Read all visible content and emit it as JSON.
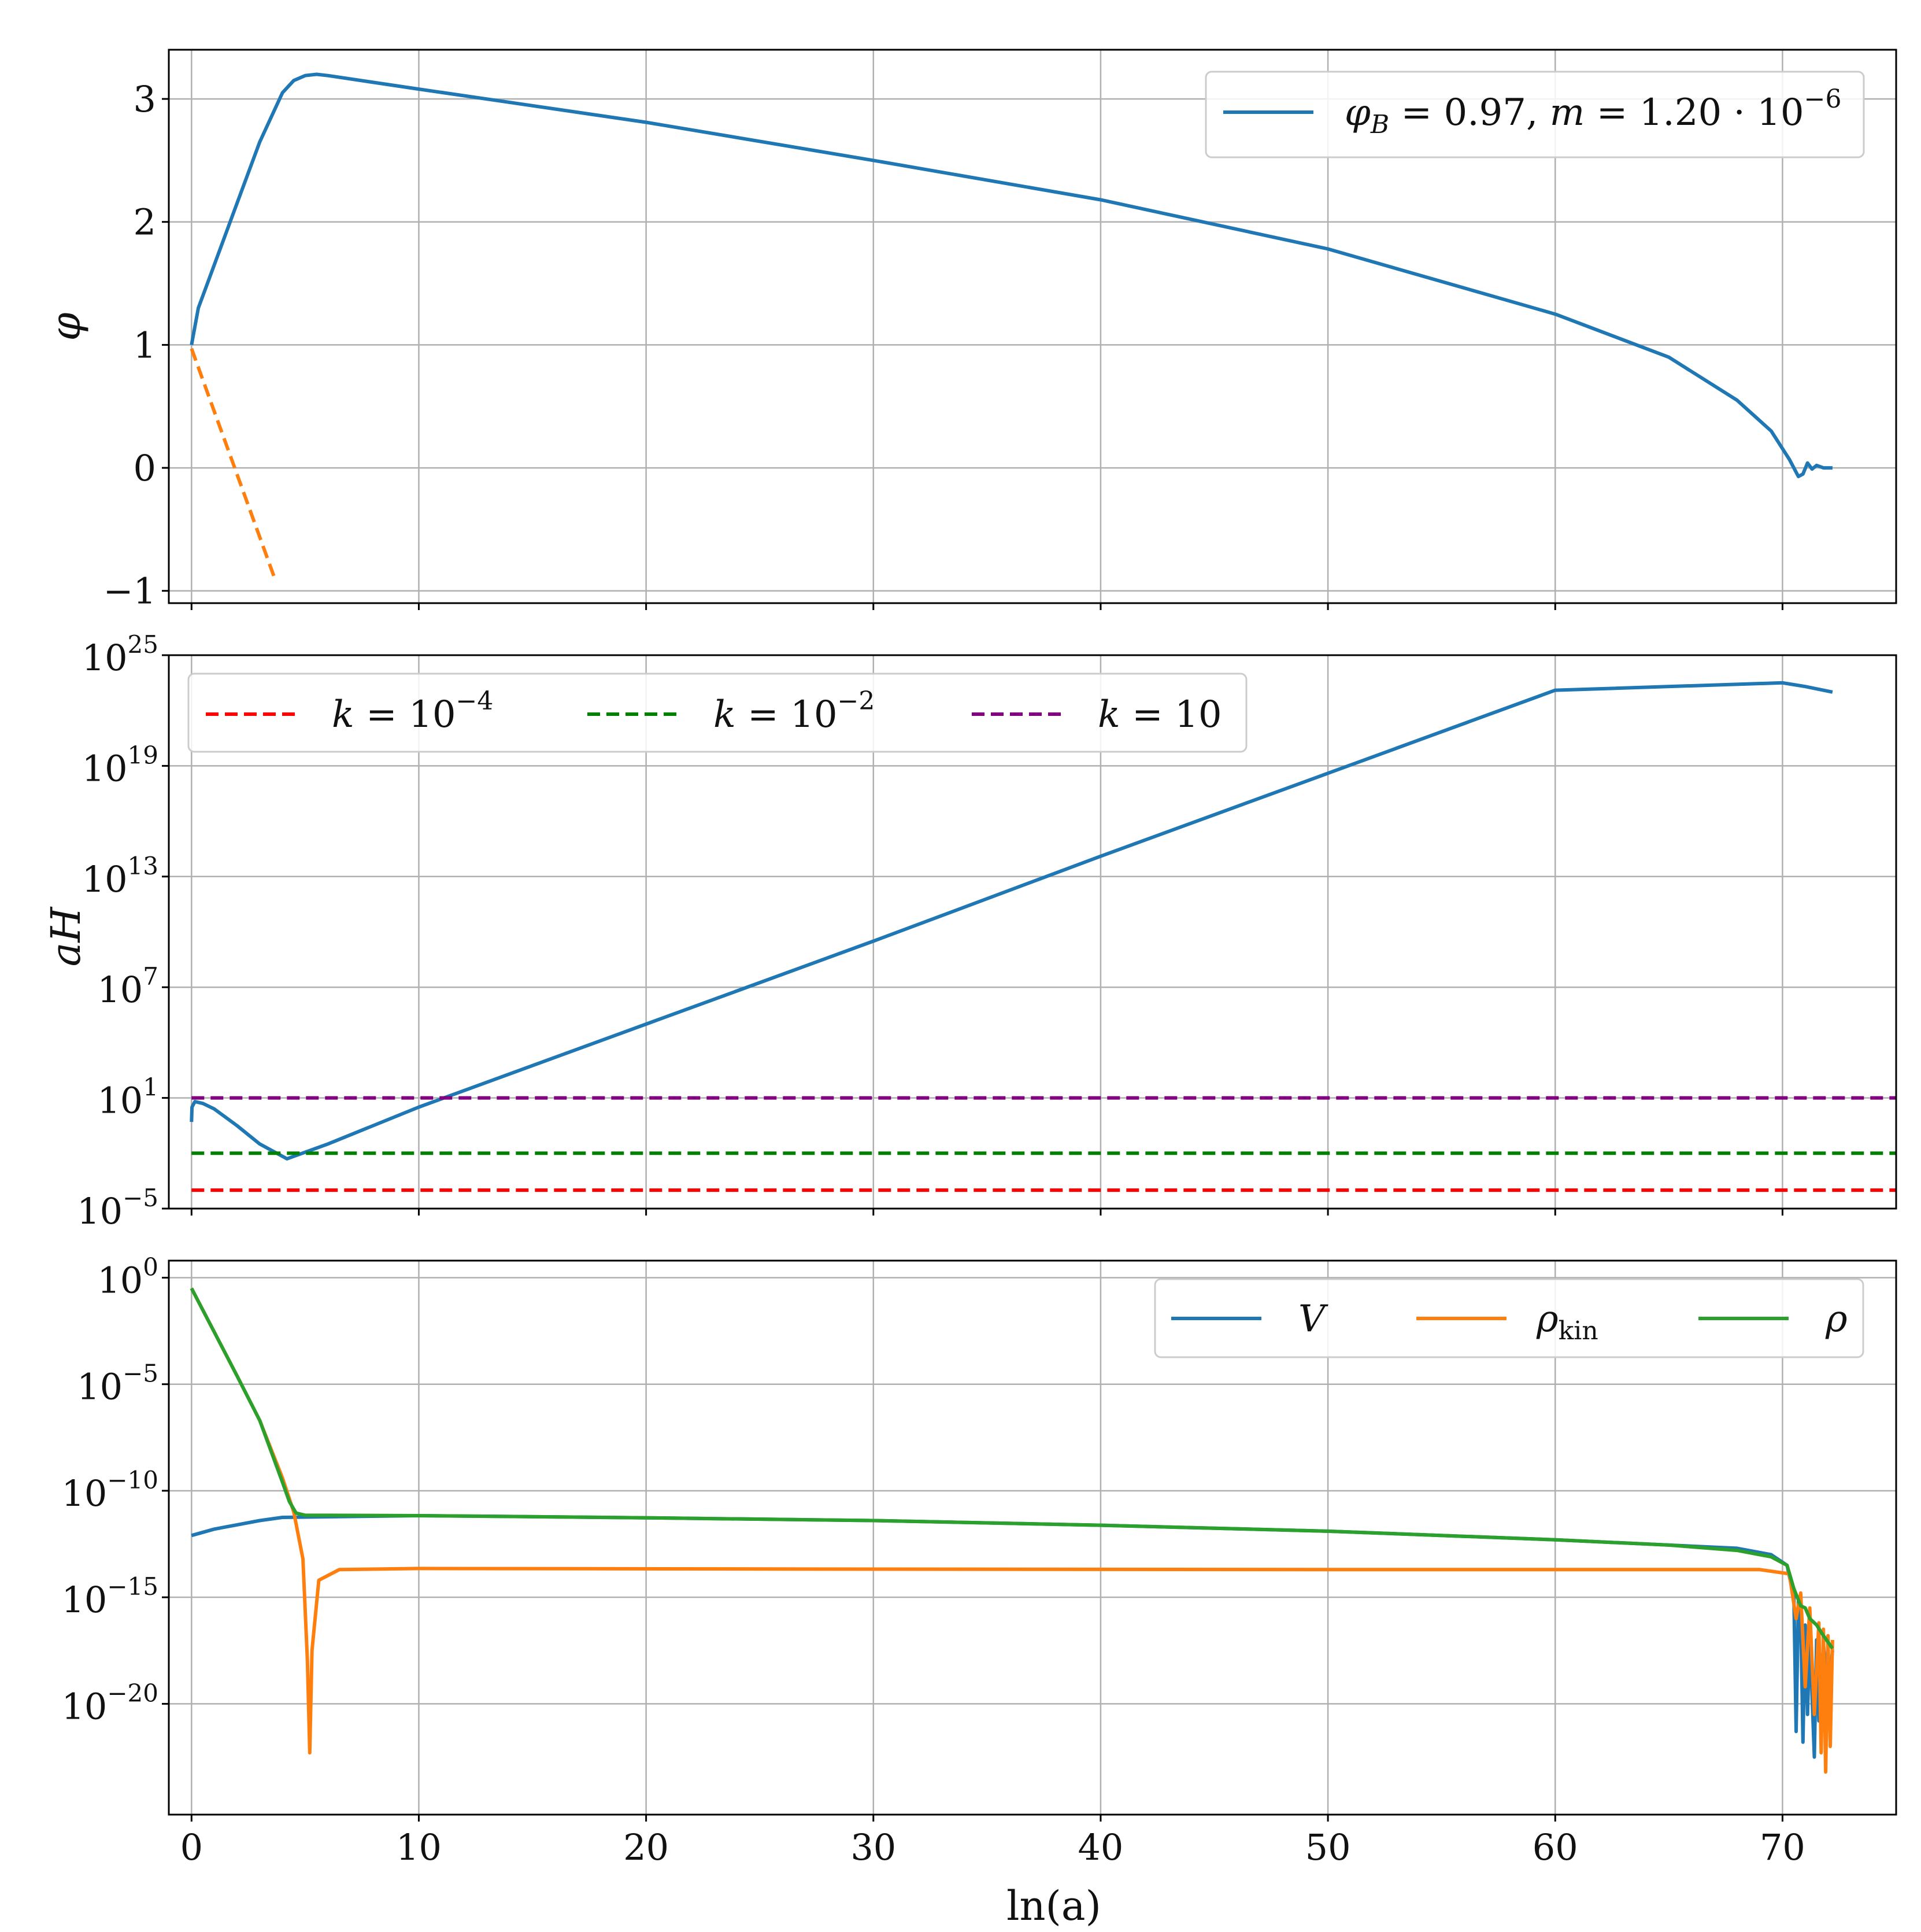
{
  "chart_data": [
    {
      "type": "line",
      "ylabel": "φ",
      "xlim": [
        -1,
        75
      ],
      "ylim": [
        -1.1,
        3.4
      ],
      "yticks": [
        -1,
        0,
        1,
        2,
        3
      ],
      "ytick_labels": [
        "−1",
        "0",
        "1",
        "2",
        "3"
      ],
      "grid": true,
      "legend": {
        "placement": "top-right",
        "entries": [
          {
            "series": 0,
            "text": "φB = 0.97, m = 1.20 · 10−6",
            "parts": {
              "phi": "φ",
              "sub": "B",
              "body": " = 0.97, ",
              "m": "m",
              "eq": " = 1.20 · 10",
              "exp": "−6"
            }
          }
        ]
      },
      "series": [
        {
          "name": "φB = 0.97, m = 1.20 · 10−6",
          "color": "#1f77b4",
          "style": "solid",
          "x": [
            0,
            0.3,
            1,
            2,
            3,
            4,
            4.5,
            5,
            5.5,
            6,
            10,
            20,
            30,
            40,
            50,
            60,
            65,
            68,
            69.5,
            70.3,
            70.7,
            70.9,
            71.1,
            71.3,
            71.5,
            71.8,
            72.2
          ],
          "y": [
            1.0,
            1.3,
            1.65,
            2.15,
            2.65,
            3.05,
            3.15,
            3.19,
            3.2,
            3.19,
            3.08,
            2.81,
            2.5,
            2.18,
            1.78,
            1.25,
            0.9,
            0.55,
            0.3,
            0.07,
            -0.07,
            -0.05,
            0.04,
            -0.01,
            0.02,
            0.0,
            0.0
          ]
        },
        {
          "name": "",
          "color": "#ff7f0e",
          "style": "dashed",
          "x": [
            0,
            3.7
          ],
          "y": [
            0.97,
            -0.92
          ]
        }
      ]
    },
    {
      "type": "line",
      "ylabel": "aH",
      "yscale": "log",
      "xlim": [
        -1,
        75
      ],
      "ylim_log10": [
        -5,
        25
      ],
      "yticks_log10": [
        -5,
        1,
        7,
        13,
        19,
        25
      ],
      "ytick_labels": [
        {
          "base": "10",
          "exp": "−5"
        },
        {
          "base": "10",
          "exp": "1"
        },
        {
          "base": "10",
          "exp": "7"
        },
        {
          "base": "10",
          "exp": "13"
        },
        {
          "base": "10",
          "exp": "19"
        },
        {
          "base": "10",
          "exp": "25"
        }
      ],
      "grid": true,
      "legend": {
        "placement": "top-left",
        "entries": [
          {
            "series": 1,
            "text": "k = 10−4",
            "parts": {
              "k": "k",
              "eq": " = 10",
              "exp": "−4"
            }
          },
          {
            "series": 2,
            "text": "k = 10−2",
            "parts": {
              "k": "k",
              "eq": " = 10",
              "exp": "−2"
            }
          },
          {
            "series": 3,
            "text": "k = 10",
            "parts": {
              "k": "k",
              "eq": " = 10",
              "exp": ""
            }
          }
        ]
      },
      "series": [
        {
          "name": "",
          "color": "#1f77b4",
          "style": "solid",
          "log10_y": true,
          "x": [
            0,
            0.02,
            0.15,
            0.5,
            1,
            2,
            3,
            4.2,
            6,
            10,
            20,
            30,
            40,
            50,
            60,
            70,
            70.5,
            71,
            72.2
          ],
          "y": [
            -0.3,
            0.5,
            0.8,
            0.7,
            0.4,
            -0.5,
            -1.5,
            -2.3,
            -1.5,
            0.5,
            5.0,
            9.5,
            14.1,
            18.6,
            23.1,
            23.5,
            23.4,
            23.3,
            23.0
          ]
        },
        {
          "name": "k = 10−4",
          "color": "#ff0000",
          "style": "dashed",
          "log10_y": true,
          "x": [
            0,
            75
          ],
          "y": [
            -4,
            -4
          ]
        },
        {
          "name": "k = 10−2",
          "color": "#008000",
          "style": "dashed",
          "log10_y": true,
          "x": [
            0,
            75
          ],
          "y": [
            -2,
            -2
          ]
        },
        {
          "name": "k = 10",
          "color": "#800080",
          "style": "dashed",
          "log10_y": true,
          "x": [
            0,
            75
          ],
          "y": [
            1,
            1
          ]
        }
      ]
    },
    {
      "type": "line",
      "xlabel": "ln(a)",
      "yscale": "log",
      "xlim": [
        -1,
        75
      ],
      "ylim_log10": [
        -25.2,
        0.8
      ],
      "xticks": [
        0,
        10,
        20,
        30,
        40,
        50,
        60,
        70
      ],
      "xtick_labels": [
        "0",
        "10",
        "20",
        "30",
        "40",
        "50",
        "60",
        "70"
      ],
      "yticks_log10": [
        0,
        -5,
        -10,
        -15,
        -20
      ],
      "ytick_labels": [
        {
          "base": "10",
          "exp": "0"
        },
        {
          "base": "10",
          "exp": "−5"
        },
        {
          "base": "10",
          "exp": "−10"
        },
        {
          "base": "10",
          "exp": "−15"
        },
        {
          "base": "10",
          "exp": "−20"
        }
      ],
      "grid": true,
      "legend": {
        "placement": "top-right",
        "entries": [
          {
            "series": 0,
            "text": "V",
            "parts": {
              "sym": "V",
              "sub": ""
            }
          },
          {
            "series": 1,
            "text": "ρkin",
            "parts": {
              "sym": "ρ",
              "sub": "kin"
            }
          },
          {
            "series": 2,
            "text": "ρ",
            "parts": {
              "sym": "ρ",
              "sub": ""
            }
          }
        ]
      },
      "series": [
        {
          "name": "V",
          "color": "#1f77b4",
          "style": "solid",
          "log10_y": true,
          "x": [
            0,
            1,
            2,
            3,
            4,
            10,
            20,
            30,
            40,
            50,
            60,
            68,
            69.5,
            70.2,
            70.5,
            70.6,
            70.7,
            70.8,
            70.9,
            71.0,
            71.1,
            71.2,
            71.4,
            71.5,
            71.6,
            71.8,
            72.0,
            72.2
          ],
          "y": [
            -12.1,
            -11.8,
            -11.6,
            -11.4,
            -11.25,
            -11.17,
            -11.27,
            -11.4,
            -11.62,
            -11.9,
            -12.3,
            -12.7,
            -13.0,
            -13.5,
            -15.0,
            -21.3,
            -15.2,
            -15.8,
            -21.8,
            -16.3,
            -20.5,
            -16.7,
            -22.5,
            -17.0,
            -20.8,
            -17.2,
            -19.6,
            -17.5
          ]
        },
        {
          "name": "ρkin",
          "color": "#ff7f0e",
          "style": "solid",
          "log10_y": true,
          "x": [
            0,
            1,
            2,
            3,
            4,
            4.5,
            4.9,
            5.1,
            5.2,
            5.3,
            5.6,
            6.5,
            10,
            30,
            50,
            69,
            70.3,
            70.6,
            70.8,
            71.0,
            71.2,
            71.4,
            71.6,
            71.7,
            71.8,
            71.9,
            72.0,
            72.1,
            72.2
          ],
          "y": [
            -0.5,
            -2.55,
            -4.6,
            -6.7,
            -9.4,
            -11.0,
            -13.2,
            -18.0,
            -22.3,
            -17.5,
            -14.2,
            -13.7,
            -13.65,
            -13.68,
            -13.7,
            -13.7,
            -13.9,
            -16.0,
            -14.8,
            -19.2,
            -15.5,
            -20.5,
            -16.2,
            -22.3,
            -16.5,
            -23.2,
            -16.8,
            -22.0,
            -17.0
          ]
        },
        {
          "name": "ρ",
          "color": "#2ca02c",
          "style": "solid",
          "log10_y": true,
          "x": [
            0,
            1,
            2,
            3,
            4,
            4.3,
            4.6,
            5,
            10,
            20,
            30,
            40,
            50,
            60,
            65,
            68,
            69.5,
            70.2,
            70.5,
            70.8,
            71.0,
            71.2,
            71.5,
            71.8,
            72.2
          ],
          "y": [
            -0.5,
            -2.55,
            -4.6,
            -6.7,
            -9.6,
            -10.5,
            -11.05,
            -11.15,
            -11.17,
            -11.27,
            -11.4,
            -11.62,
            -11.9,
            -12.3,
            -12.55,
            -12.8,
            -13.1,
            -13.5,
            -14.6,
            -15.4,
            -15.5,
            -16.0,
            -16.3,
            -16.8,
            -17.4
          ]
        }
      ]
    }
  ]
}
